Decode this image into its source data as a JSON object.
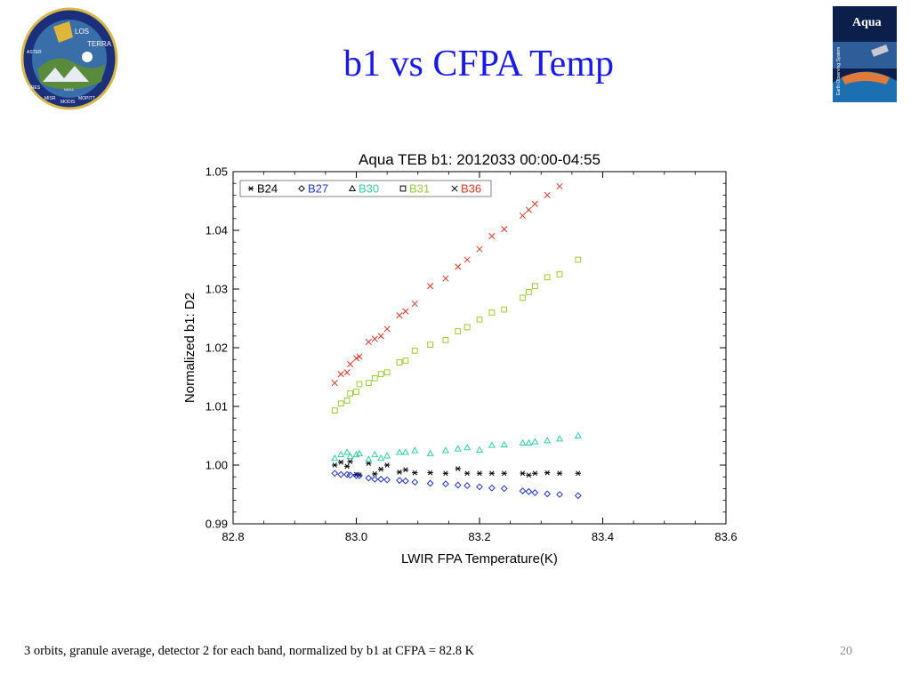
{
  "slide": {
    "title": "b1 vs CFPA Temp",
    "caption": "3 orbits, granule average, detector 2 for each band, normalized by b1 at CFPA = 82.8 K",
    "slide_number": "20",
    "logo_left": {
      "icon": "mission-patch-logo",
      "text": [
        "LOS",
        "TERRA",
        "CERES",
        "MISR",
        "MODIS",
        "MOPITT",
        "ASTER",
        "NASA"
      ]
    },
    "logo_right": {
      "icon": "aqua-poster-logo",
      "text": [
        "Aqua",
        "Earth Observing System"
      ]
    }
  },
  "chart_data": {
    "type": "scatter",
    "title": "Aqua TEB b1: 2012033 00:00-04:55",
    "xlabel": "LWIR FPA Temperature(K)",
    "ylabel": "Normalized b1: D2",
    "xlim": [
      82.8,
      83.6
    ],
    "ylim": [
      0.99,
      1.05
    ],
    "xticks": [
      "82.8",
      "83.0",
      "83.2",
      "83.4",
      "83.6"
    ],
    "yticks": [
      "0.99",
      "1.00",
      "1.01",
      "1.02",
      "1.03",
      "1.04",
      "1.05"
    ],
    "grid": false,
    "legend_position": "top-left",
    "x": [
      82.965,
      82.975,
      82.985,
      82.99,
      83.0,
      83.005,
      83.02,
      83.03,
      83.04,
      83.05,
      83.07,
      83.08,
      83.095,
      83.12,
      83.145,
      83.165,
      83.18,
      83.2,
      83.22,
      83.24,
      83.27,
      83.28,
      83.29,
      83.31,
      83.33,
      83.36
    ],
    "series": [
      {
        "name": "B24",
        "color": "#000000",
        "marker": "asterisk",
        "values": [
          1.0,
          1.0005,
          0.9998,
          1.0006,
          0.9984,
          0.9983,
          1.0003,
          0.9985,
          0.9993,
          1.0,
          0.9988,
          0.9992,
          0.9987,
          0.9987,
          0.9986,
          0.9994,
          0.9986,
          0.9986,
          0.9986,
          0.9986,
          0.9986,
          0.9983,
          0.9986,
          0.9987,
          0.9986,
          0.9986
        ]
      },
      {
        "name": "B27",
        "color": "#2233cc",
        "marker": "diamond",
        "values": [
          0.9986,
          0.9984,
          0.9984,
          0.9983,
          0.9982,
          0.9982,
          0.9978,
          0.9976,
          0.9976,
          0.9975,
          0.9974,
          0.9973,
          0.9971,
          0.9969,
          0.9968,
          0.9966,
          0.9965,
          0.9963,
          0.9961,
          0.996,
          0.9956,
          0.9955,
          0.9953,
          0.9951,
          0.995,
          0.9948
        ]
      },
      {
        "name": "B30",
        "color": "#33ccaa",
        "marker": "triangle",
        "values": [
          1.0012,
          1.0018,
          1.0022,
          1.0015,
          1.0018,
          1.002,
          1.001,
          1.0018,
          1.0012,
          1.0016,
          1.0022,
          1.0022,
          1.0025,
          1.002,
          1.0025,
          1.0028,
          1.003,
          1.0026,
          1.0034,
          1.0035,
          1.0038,
          1.0038,
          1.004,
          1.0042,
          1.0045,
          1.005
        ]
      },
      {
        "name": "B31",
        "color": "#99cc33",
        "marker": "square",
        "values": [
          1.0093,
          1.0105,
          1.011,
          1.0122,
          1.0125,
          1.0138,
          1.014,
          1.0148,
          1.0155,
          1.0158,
          1.0175,
          1.0178,
          1.0195,
          1.0205,
          1.0213,
          1.0228,
          1.0235,
          1.0248,
          1.026,
          1.0265,
          1.0285,
          1.0295,
          1.0305,
          1.032,
          1.0325,
          1.035
        ]
      },
      {
        "name": "B36",
        "color": "#dd3322",
        "marker": "x",
        "values": [
          1.014,
          1.0155,
          1.0158,
          1.0172,
          1.0182,
          1.0185,
          1.021,
          1.0215,
          1.022,
          1.0232,
          1.0255,
          1.0262,
          1.0275,
          1.0305,
          1.0318,
          1.0338,
          1.035,
          1.0368,
          1.039,
          1.0402,
          1.0425,
          1.0435,
          1.0445,
          1.046,
          1.0475,
          null
        ]
      }
    ]
  }
}
